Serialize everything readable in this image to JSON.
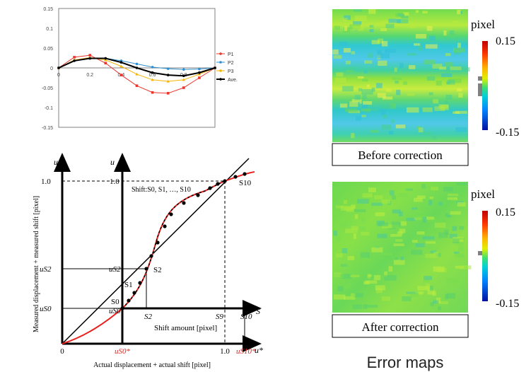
{
  "chart_data": {
    "type": "line",
    "ylim": [
      -0.15,
      0.15
    ],
    "xlim": [
      0,
      1.0
    ],
    "y_ticks": [
      "0.15",
      "0.1",
      "0.05",
      "0",
      "-0.05",
      "-0.1",
      "-0.15"
    ],
    "x_ticks": [
      "0",
      "0.2",
      "0.4",
      "0.6",
      "0.8"
    ],
    "grid": false,
    "legend_position": "right",
    "series": [
      {
        "name": "P1",
        "color": "#e8372e",
        "marker": "square",
        "x": [
          0,
          0.1,
          0.2,
          0.3,
          0.4,
          0.5,
          0.6,
          0.7,
          0.8,
          0.9,
          1.0
        ],
        "y": [
          0,
          0.027,
          0.032,
          0.012,
          -0.018,
          -0.045,
          -0.062,
          -0.064,
          -0.05,
          -0.025,
          0
        ]
      },
      {
        "name": "P2",
        "color": "#2f8fd0",
        "marker": "circle",
        "x": [
          0,
          0.1,
          0.2,
          0.3,
          0.4,
          0.5,
          0.6,
          0.7,
          0.8,
          0.9,
          1.0
        ],
        "y": [
          0,
          0.018,
          0.024,
          0.024,
          0.018,
          0.01,
          0.002,
          -0.002,
          -0.004,
          -0.003,
          0
        ]
      },
      {
        "name": "P3",
        "color": "#f4b400",
        "marker": "triangle",
        "x": [
          0,
          0.1,
          0.2,
          0.3,
          0.4,
          0.5,
          0.6,
          0.7,
          0.8,
          0.9,
          1.0
        ],
        "y": [
          0,
          0.02,
          0.026,
          0.02,
          0.004,
          -0.016,
          -0.03,
          -0.034,
          -0.03,
          -0.016,
          0
        ]
      },
      {
        "name": "Ave.",
        "color": "#000000",
        "marker": "circle",
        "x": [
          0,
          0.1,
          0.2,
          0.3,
          0.4,
          0.5,
          0.6,
          0.7,
          0.8,
          0.9,
          1.0
        ],
        "y": [
          0,
          0.018,
          0.024,
          0.024,
          0.014,
          0.0,
          -0.012,
          -0.018,
          -0.02,
          -0.012,
          0
        ]
      }
    ]
  },
  "diagram": {
    "outer_axis_u": "u",
    "outer_axis_u_star": "u*",
    "inner_axis_u": "u",
    "inner_axis_s": "S",
    "origin": "0",
    "u_one": "1.0",
    "inner_u_one": "1.0",
    "x_one": "1.0",
    "shift_legend": "Shift:S0, S1, …, S10",
    "shift_amount_label": "Shift amount [pixel]",
    "ylabel": "Measured displacement + measured shift [pixel]",
    "xlabel": "Actual displacement + actual shift [pixel]",
    "u_s2": "uS2",
    "u_s0": "uS0",
    "inner_u_s2": "uS2",
    "inner_u_s0": "uS0",
    "s0": "S0",
    "s1": "S1",
    "s2": "S2",
    "s10": "S10",
    "axis_s2": "S2",
    "axis_s9": "S9",
    "axis_s10": "S10",
    "u_s0_star": "uS0*",
    "u_s10_star": "uS10*",
    "curve_color": "#e8201e"
  },
  "maps": {
    "unit_top": "pixel",
    "unit_bottom": "pixel",
    "max_top": "0.15",
    "min_top": "-0.15",
    "max_bottom": "0.15",
    "min_bottom": "-0.15",
    "before_label": "Before correction",
    "after_label": "After correction",
    "title": "Error maps"
  }
}
